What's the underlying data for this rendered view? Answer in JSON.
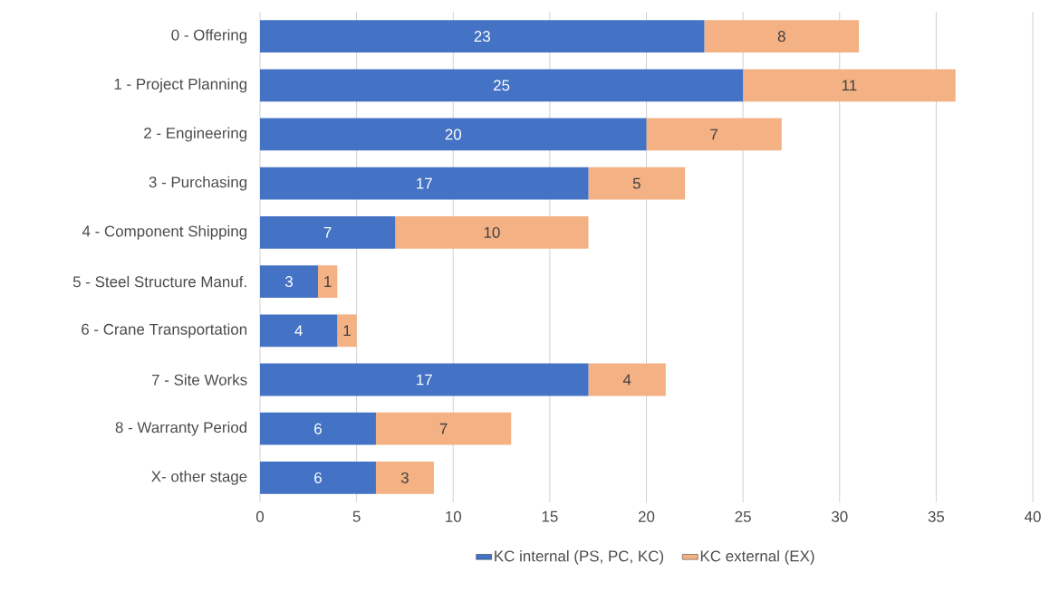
{
  "chart_data": {
    "type": "bar",
    "orientation": "horizontal",
    "stacked": true,
    "categories": [
      "0 - Offering",
      "1 - Project Planning",
      "2 - Engineering",
      "3 - Purchasing",
      "4 - Component Shipping",
      "5 - Steel Structure Manuf.",
      "6 - Crane Transportation",
      "7 - Site Works",
      "8 - Warranty Period",
      "X- other stage"
    ],
    "series": [
      {
        "name": "KC internal (PS, PC, KC)",
        "color": "#4472c4",
        "values": [
          23,
          25,
          20,
          17,
          7,
          3,
          4,
          17,
          6,
          6
        ]
      },
      {
        "name": "KC external (EX)",
        "color": "#f4b183",
        "values": [
          8,
          11,
          7,
          5,
          10,
          1,
          1,
          4,
          7,
          3
        ]
      }
    ],
    "xlim": [
      0,
      40
    ],
    "xticks": [
      0,
      5,
      10,
      15,
      20,
      25,
      30,
      35,
      40
    ],
    "grid": "x",
    "legend": "bottom",
    "data_labels": true
  }
}
